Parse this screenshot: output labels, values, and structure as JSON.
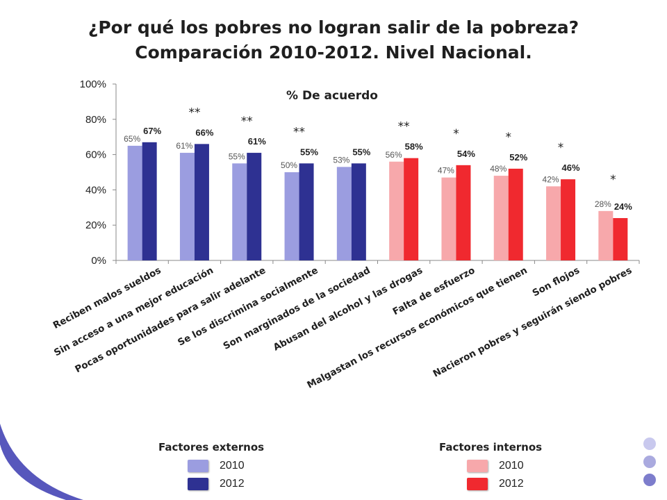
{
  "title": {
    "line1": "¿Por qué los pobres no logran salir de la pobreza?",
    "line2": "Comparación 2010-2012. Nivel Nacional."
  },
  "chart_data": {
    "type": "bar",
    "subtitle": "% De acuerdo",
    "ylim": [
      0,
      100
    ],
    "yticks": [
      "0%",
      "20%",
      "40%",
      "60%",
      "80%",
      "100%"
    ],
    "categories": [
      "Reciben malos sueldos",
      "Sin acceso a una mejor educación",
      "Pocas oportunidades para salir adelante",
      "Se los discrimina socialmente",
      "Son marginados de la sociedad",
      "Abusan del alcohol y las drogas",
      "Falta de esfuerzo",
      "Malgastan los recursos económicos que tienen",
      "Son flojos",
      "Nacieron pobres y seguirán siendo pobres"
    ],
    "group": [
      "externo",
      "externo",
      "externo",
      "externo",
      "externo",
      "interno",
      "interno",
      "interno",
      "interno",
      "interno"
    ],
    "series": [
      {
        "name": "2010",
        "values": [
          65,
          61,
          55,
          50,
          53,
          56,
          47,
          48,
          42,
          28
        ]
      },
      {
        "name": "2012",
        "values": [
          67,
          66,
          61,
          55,
          55,
          58,
          54,
          52,
          46,
          24
        ]
      }
    ],
    "significance": [
      "",
      "**",
      "**",
      "**",
      "",
      "**",
      "*",
      "*",
      "*"
    ],
    "significance_last": "*",
    "colors": {
      "externo_2010": "#9b9de0",
      "externo_2012": "#2e3192",
      "interno_2010": "#f7a8ab",
      "interno_2012": "#f0292f"
    },
    "grid": false
  },
  "legend": {
    "externos": {
      "heading": "Factores externos",
      "items": [
        "2010",
        "2012"
      ]
    },
    "internos": {
      "heading": "Factores internos",
      "items": [
        "2010",
        "2012"
      ]
    }
  }
}
